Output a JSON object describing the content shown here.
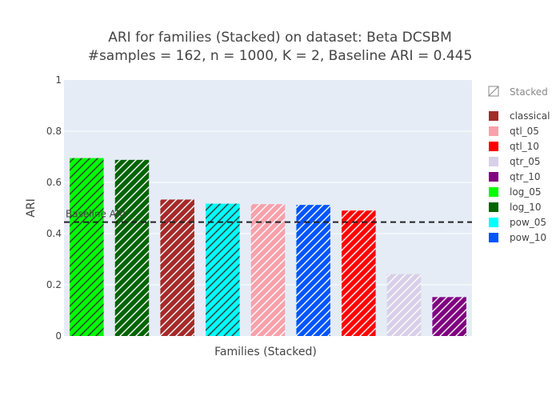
{
  "chart_data": {
    "type": "bar",
    "title_line1": "ARI for families (Stacked) on dataset: Beta DCSBM",
    "title_line2": "#samples = 162, n = 1000, K = 2, Baseline ARI = 0.445",
    "xlabel": "Families (Stacked)",
    "ylabel": "ARI",
    "ylim": [
      0,
      1
    ],
    "yticks": [
      "0",
      "0.2",
      "0.4",
      "0.6",
      "0.8",
      "1"
    ],
    "ytick_values": [
      0,
      0.2,
      0.4,
      0.6,
      0.8,
      1
    ],
    "grid": true,
    "legend_placement": "right",
    "legend_group_title": "Stacked",
    "baseline": {
      "value": 0.445,
      "label": "Baseline ARI"
    },
    "series": [
      {
        "name": "log_05",
        "value": 0.695,
        "color": "#00ff00",
        "hatch": "#333333"
      },
      {
        "name": "log_10",
        "value": 0.688,
        "color": "#006400",
        "hatch": "#ffffff"
      },
      {
        "name": "classical",
        "value": 0.533,
        "color": "#a52a2a",
        "hatch": "#ffffff"
      },
      {
        "name": "pow_05",
        "value": 0.517,
        "color": "#00ffff",
        "hatch": "#333333"
      },
      {
        "name": "qtl_05",
        "value": 0.515,
        "color": "#f7a1ab",
        "hatch": "#ffffff"
      },
      {
        "name": "pow_10",
        "value": 0.512,
        "color": "#0055ff",
        "hatch": "#ffffff"
      },
      {
        "name": "qtl_10",
        "value": 0.49,
        "color": "#ff0000",
        "hatch": "#ffffff"
      },
      {
        "name": "qtr_05",
        "value": 0.242,
        "color": "#d8d0e8",
        "hatch": "#ffffff"
      },
      {
        "name": "qtr_10",
        "value": 0.152,
        "color": "#800080",
        "hatch": "#ffffff"
      }
    ],
    "legend_order": [
      "classical",
      "qtl_05",
      "qtl_10",
      "qtr_05",
      "qtr_10",
      "log_05",
      "log_10",
      "pow_05",
      "pow_10"
    ],
    "colors": {
      "plot_bg": "#e5ecf6",
      "grid": "#ffffff",
      "baseline_line": "#222222"
    }
  }
}
